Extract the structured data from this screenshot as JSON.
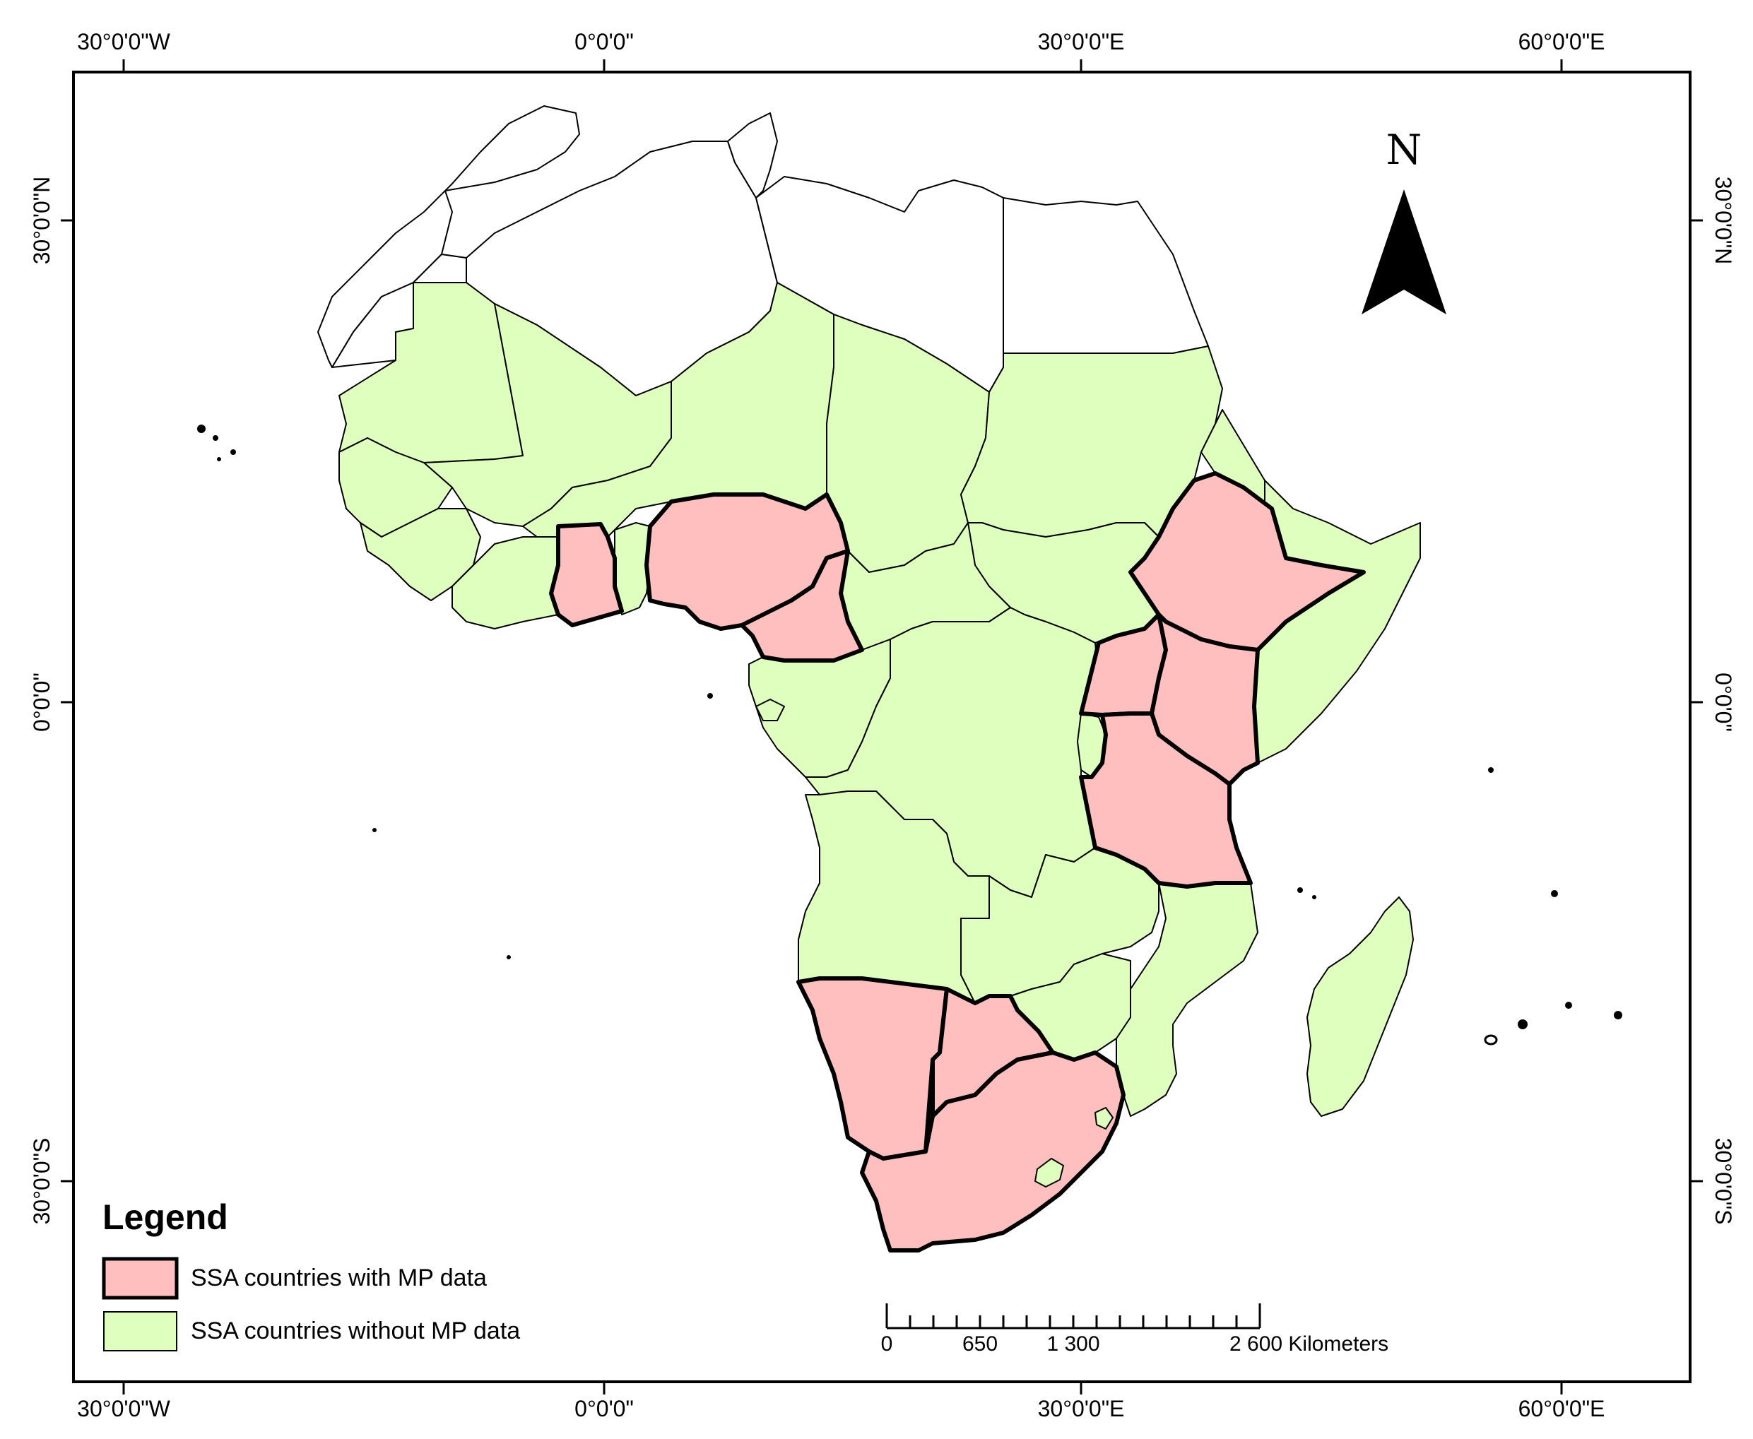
{
  "map": {
    "lon_labels": [
      "30°0'0\"W",
      "0°0'0\"",
      "30°0'0\"E",
      "60°0'0\"E"
    ],
    "lat_labels": [
      "30°0'0\"N",
      "0°0'0\"",
      "30°0'0\"S"
    ],
    "north_arrow_label": "N"
  },
  "legend": {
    "title": "Legend",
    "items": [
      {
        "label": "SSA countries with MP data",
        "color": "#ffbfbf",
        "border": "thick"
      },
      {
        "label": "SSA countries without MP data",
        "color": "#dfffbf",
        "border": "thin"
      }
    ]
  },
  "scale_bar": {
    "labels": [
      "0",
      "650",
      "1 300",
      "2 600 Kilometers"
    ]
  },
  "colors": {
    "with_mp": "#ffbfbf",
    "without_mp": "#dfffbf",
    "non_ssa": "#ffffff"
  },
  "regions": {
    "with_mp_data": [
      "Ghana",
      "Nigeria",
      "Cameroon",
      "Ethiopia",
      "Uganda",
      "Kenya",
      "Tanzania",
      "Namibia",
      "Botswana",
      "South Africa"
    ]
  }
}
